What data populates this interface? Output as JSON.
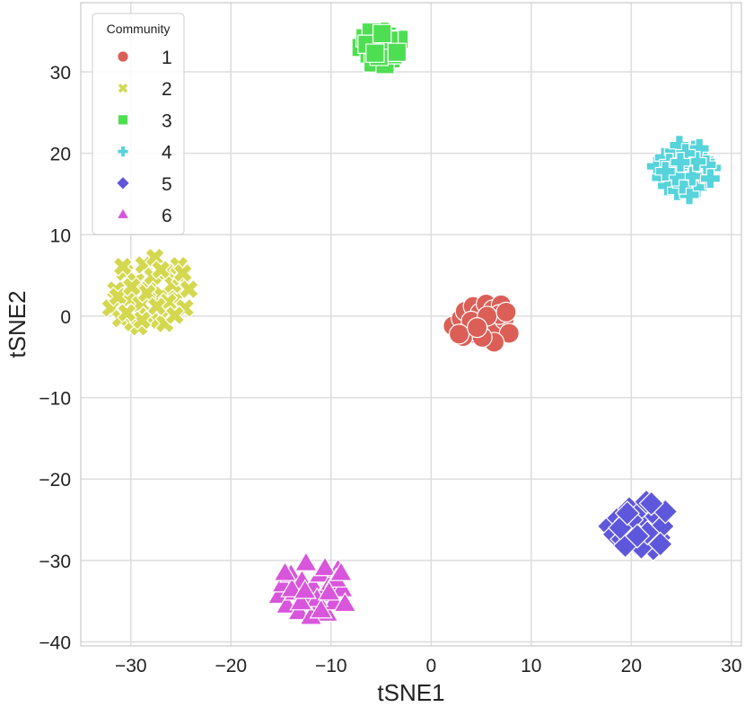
{
  "chart_data": {
    "type": "scatter",
    "title": "",
    "xlabel": "tSNE1",
    "ylabel": "tSNE2",
    "xlim": [
      -35,
      31
    ],
    "ylim": [
      -40.5,
      38.5
    ],
    "xticks": [
      -30,
      -20,
      -10,
      0,
      10,
      20,
      30
    ],
    "yticks": [
      -40,
      -30,
      -20,
      -10,
      0,
      10,
      20,
      30
    ],
    "xtick_labels": [
      "−30",
      "−20",
      "−10",
      "0",
      "10",
      "20",
      "30"
    ],
    "ytick_labels": [
      "−40",
      "−30",
      "−20",
      "−10",
      "0",
      "10",
      "20",
      "30"
    ],
    "grid": true,
    "legend": {
      "title": "Community",
      "position": "top-left"
    },
    "series": [
      {
        "name": "1",
        "marker": "circle",
        "color": "#db5f57",
        "points": [
          [
            2.2,
            -1.2
          ],
          [
            3.0,
            -0.3
          ],
          [
            3.4,
            0.6
          ],
          [
            3.8,
            -1.6
          ],
          [
            4.2,
            1.2
          ],
          [
            4.5,
            -2.2
          ],
          [
            4.9,
            0.4
          ],
          [
            5.2,
            -0.9
          ],
          [
            5.5,
            1.5
          ],
          [
            5.8,
            -1.9
          ],
          [
            6.2,
            0.8
          ],
          [
            6.6,
            -1.3
          ],
          [
            7.0,
            1.4
          ],
          [
            7.3,
            -0.4
          ],
          [
            7.8,
            -2.1
          ],
          [
            6.3,
            -3.2
          ],
          [
            3.2,
            -2.5
          ],
          [
            5.1,
            -2.6
          ],
          [
            6.8,
            0.2
          ],
          [
            4.0,
            -0.6
          ],
          [
            5.6,
            0.0
          ],
          [
            7.5,
            0.5
          ],
          [
            2.8,
            -2.2
          ],
          [
            4.6,
            -1.4
          ]
        ]
      },
      {
        "name": "2",
        "marker": "x",
        "color": "#d3d84f",
        "points": [
          [
            -32.0,
            1.0
          ],
          [
            -31.5,
            3.2
          ],
          [
            -31.0,
            -0.3
          ],
          [
            -30.6,
            5.4
          ],
          [
            -30.2,
            2.1
          ],
          [
            -29.8,
            -0.8
          ],
          [
            -29.5,
            4.3
          ],
          [
            -29.0,
            1.5
          ],
          [
            -28.7,
            6.3
          ],
          [
            -28.3,
            0.0
          ],
          [
            -28.0,
            3.5
          ],
          [
            -27.6,
            7.2
          ],
          [
            -27.2,
            -0.5
          ],
          [
            -26.9,
            2.6
          ],
          [
            -26.5,
            5.4
          ],
          [
            -26.1,
            0.6
          ],
          [
            -25.8,
            3.9
          ],
          [
            -25.4,
            2.1
          ],
          [
            -25.0,
            4.8
          ],
          [
            -24.6,
            1.0
          ],
          [
            -24.2,
            3.3
          ],
          [
            -30.8,
            6.1
          ],
          [
            -29.2,
            -1.3
          ],
          [
            -27.8,
            4.9
          ],
          [
            -26.6,
            -0.9
          ],
          [
            -25.2,
            6.2
          ],
          [
            -28.4,
            2.8
          ],
          [
            -31.3,
            2.4
          ],
          [
            -27.0,
            5.7
          ],
          [
            -29.9,
            3.6
          ],
          [
            -26.3,
            1.7
          ],
          [
            -28.9,
            -0.5
          ],
          [
            -24.8,
            5.3
          ],
          [
            -30.4,
            0.4
          ],
          [
            -27.4,
            1.2
          ],
          [
            -25.6,
            0.1
          ]
        ]
      },
      {
        "name": "3",
        "marker": "square",
        "color": "#4ede52",
        "points": [
          [
            -7.0,
            33.0
          ],
          [
            -6.6,
            34.2
          ],
          [
            -6.2,
            32.2
          ],
          [
            -5.8,
            31.1
          ],
          [
            -5.5,
            33.6
          ],
          [
            -5.1,
            35.0
          ],
          [
            -4.8,
            32.6
          ],
          [
            -4.4,
            34.4
          ],
          [
            -4.0,
            31.6
          ],
          [
            -3.6,
            33.2
          ],
          [
            -3.2,
            34.0
          ],
          [
            -4.6,
            30.9
          ],
          [
            -6.0,
            34.9
          ],
          [
            -3.8,
            32.1
          ],
          [
            -5.2,
            31.9
          ],
          [
            -6.4,
            33.4
          ],
          [
            -4.2,
            33.9
          ],
          [
            -3.4,
            32.4
          ],
          [
            -5.6,
            32.3
          ],
          [
            -4.9,
            34.7
          ]
        ]
      },
      {
        "name": "4",
        "marker": "plus",
        "color": "#56d3db",
        "points": [
          [
            22.5,
            18.4
          ],
          [
            23.0,
            17.0
          ],
          [
            23.3,
            19.5
          ],
          [
            23.6,
            16.0
          ],
          [
            24.0,
            18.0
          ],
          [
            24.3,
            20.2
          ],
          [
            24.6,
            15.4
          ],
          [
            25.0,
            17.5
          ],
          [
            25.3,
            19.0
          ],
          [
            25.6,
            16.6
          ],
          [
            26.0,
            18.6
          ],
          [
            26.3,
            20.4
          ],
          [
            26.6,
            15.8
          ],
          [
            27.0,
            17.8
          ],
          [
            27.3,
            19.2
          ],
          [
            27.7,
            16.8
          ],
          [
            28.0,
            18.2
          ],
          [
            24.8,
            21.0
          ],
          [
            25.8,
            14.9
          ],
          [
            26.8,
            20.6
          ],
          [
            23.8,
            18.8
          ],
          [
            25.1,
            16.2
          ],
          [
            26.1,
            17.2
          ],
          [
            27.5,
            18.6
          ],
          [
            24.4,
            17.2
          ],
          [
            26.5,
            19.0
          ],
          [
            25.4,
            20.0
          ],
          [
            23.4,
            17.8
          ],
          [
            27.9,
            16.9
          ],
          [
            24.9,
            18.9
          ]
        ]
      },
      {
        "name": "5",
        "marker": "diamond",
        "color": "#5f57db",
        "points": [
          [
            17.8,
            -25.8
          ],
          [
            18.3,
            -26.8
          ],
          [
            18.7,
            -24.8
          ],
          [
            19.1,
            -27.4
          ],
          [
            19.5,
            -25.2
          ],
          [
            19.8,
            -23.6
          ],
          [
            20.2,
            -26.2
          ],
          [
            20.5,
            -28.0
          ],
          [
            20.8,
            -24.2
          ],
          [
            21.2,
            -26.8
          ],
          [
            21.5,
            -22.8
          ],
          [
            21.8,
            -25.4
          ],
          [
            22.2,
            -28.6
          ],
          [
            22.5,
            -24.6
          ],
          [
            22.8,
            -27.2
          ],
          [
            23.1,
            -25.8
          ],
          [
            23.4,
            -24.0
          ],
          [
            21.0,
            -28.4
          ],
          [
            19.4,
            -28.2
          ],
          [
            22.0,
            -23.0
          ],
          [
            20.0,
            -25.0
          ],
          [
            18.9,
            -26.0
          ],
          [
            21.6,
            -26.6
          ],
          [
            22.9,
            -28.0
          ],
          [
            20.6,
            -27.0
          ],
          [
            19.6,
            -24.2
          ]
        ]
      },
      {
        "name": "6",
        "marker": "triangle",
        "color": "#d856db",
        "points": [
          [
            -15.2,
            -34.4
          ],
          [
            -14.8,
            -33.0
          ],
          [
            -14.4,
            -35.6
          ],
          [
            -14.0,
            -31.8
          ],
          [
            -13.6,
            -34.0
          ],
          [
            -13.2,
            -36.4
          ],
          [
            -12.9,
            -32.6
          ],
          [
            -12.5,
            -30.4
          ],
          [
            -12.2,
            -34.8
          ],
          [
            -11.8,
            -33.2
          ],
          [
            -11.5,
            -35.8
          ],
          [
            -11.1,
            -31.8
          ],
          [
            -10.8,
            -34.2
          ],
          [
            -10.4,
            -36.6
          ],
          [
            -10.0,
            -32.8
          ],
          [
            -9.7,
            -35.2
          ],
          [
            -9.3,
            -31.2
          ],
          [
            -8.9,
            -33.6
          ],
          [
            -8.6,
            -35.4
          ],
          [
            -13.9,
            -33.6
          ],
          [
            -12.0,
            -37.0
          ],
          [
            -10.6,
            -31.0
          ],
          [
            -11.4,
            -34.8
          ],
          [
            -14.6,
            -31.6
          ],
          [
            -9.5,
            -32.4
          ],
          [
            -13.0,
            -35.2
          ],
          [
            -12.6,
            -33.8
          ],
          [
            -10.2,
            -34.0
          ],
          [
            -11.0,
            -36.2
          ],
          [
            -9.0,
            -31.6
          ]
        ]
      }
    ]
  }
}
